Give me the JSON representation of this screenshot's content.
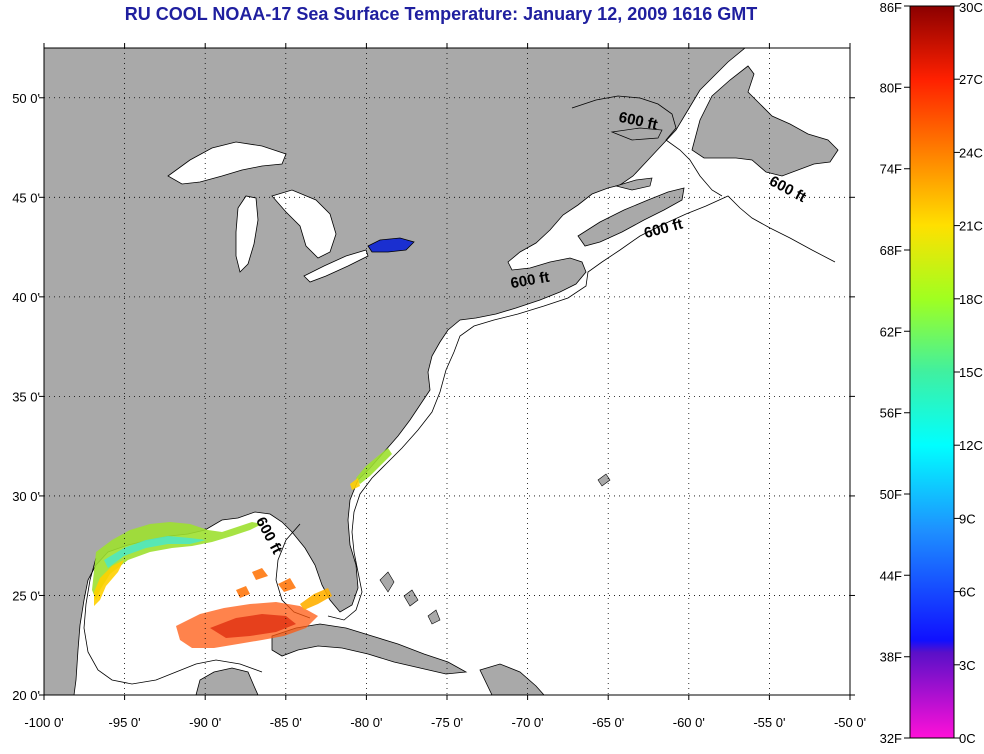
{
  "title": "RU COOL  NOAA-17  Sea Surface Temperature:  January 12, 2009 1616 GMT",
  "colors": {
    "land": "#a9a9a9",
    "ocean": "#ffffff",
    "frame": "#000000",
    "title": "#1f1f9f"
  },
  "axes": {
    "lon_range": [
      -100,
      -50
    ],
    "lat_range": [
      20,
      52.5
    ],
    "lon_ticks": [
      {
        "value": -100,
        "label": "-100 0'"
      },
      {
        "value": -95,
        "label": "-95 0'"
      },
      {
        "value": -90,
        "label": "-90 0'"
      },
      {
        "value": -85,
        "label": "-85 0'"
      },
      {
        "value": -80,
        "label": "-80 0'"
      },
      {
        "value": -75,
        "label": "-75 0'"
      },
      {
        "value": -70,
        "label": "-70 0'"
      },
      {
        "value": -65,
        "label": "-65 0'"
      },
      {
        "value": -60,
        "label": "-60 0'"
      },
      {
        "value": -55,
        "label": "-55 0'"
      },
      {
        "value": -50,
        "label": "-50 0'"
      }
    ],
    "lat_ticks": [
      {
        "value": 50,
        "label": "50 0'"
      },
      {
        "value": 45,
        "label": "45 0'"
      },
      {
        "value": 40,
        "label": "40 0'"
      },
      {
        "value": 35,
        "label": "35 0'"
      },
      {
        "value": 30,
        "label": "30 0'"
      },
      {
        "value": 25,
        "label": "25 0'"
      },
      {
        "value": 20,
        "label": "20 0'"
      }
    ]
  },
  "isobath_labels": [
    {
      "text": "600 ft",
      "lon": -63.2,
      "lat": 48.6,
      "angle": 12
    },
    {
      "text": "600 ft",
      "lon": -54.0,
      "lat": 45.2,
      "angle": 28
    },
    {
      "text": "600 ft",
      "lon": -61.5,
      "lat": 43.2,
      "angle": -15
    },
    {
      "text": "600 ft",
      "lon": -69.8,
      "lat": 40.6,
      "angle": -10
    },
    {
      "text": "600 ft",
      "lon": -86.3,
      "lat": 27.9,
      "angle": 62
    }
  ],
  "colorbar": {
    "fahrenheit_labels": [
      {
        "label": "86F",
        "celsius": 30
      },
      {
        "label": "80F",
        "celsius": 26.67
      },
      {
        "label": "74F",
        "celsius": 23.33
      },
      {
        "label": "68F",
        "celsius": 20
      },
      {
        "label": "62F",
        "celsius": 16.67
      },
      {
        "label": "56F",
        "celsius": 13.33
      },
      {
        "label": "50F",
        "celsius": 10
      },
      {
        "label": "44F",
        "celsius": 6.67
      },
      {
        "label": "38F",
        "celsius": 3.33
      },
      {
        "label": "32F",
        "celsius": 0
      }
    ],
    "celsius_labels": [
      {
        "label": "30C",
        "celsius": 30
      },
      {
        "label": "27C",
        "celsius": 27
      },
      {
        "label": "24C",
        "celsius": 24
      },
      {
        "label": "21C",
        "celsius": 21
      },
      {
        "label": "18C",
        "celsius": 18
      },
      {
        "label": "15C",
        "celsius": 15
      },
      {
        "label": "12C",
        "celsius": 12
      },
      {
        "label": "9C",
        "celsius": 9
      },
      {
        "label": "6C",
        "celsius": 6
      },
      {
        "label": "3C",
        "celsius": 3
      },
      {
        "label": "0C",
        "celsius": 0
      }
    ],
    "range_c": [
      0,
      30
    ],
    "stops": [
      {
        "celsius": 0,
        "color": "#ff10d8"
      },
      {
        "celsius": 3.5,
        "color": "#5a10c8"
      },
      {
        "celsius": 4,
        "color": "#1010ff"
      },
      {
        "celsius": 8.5,
        "color": "#1e90ff"
      },
      {
        "celsius": 12,
        "color": "#00ffff"
      },
      {
        "celsius": 15,
        "color": "#40f0a0"
      },
      {
        "celsius": 18,
        "color": "#a0ff20"
      },
      {
        "celsius": 21,
        "color": "#ffe000"
      },
      {
        "celsius": 24,
        "color": "#ff8000"
      },
      {
        "celsius": 27,
        "color": "#ff2000"
      },
      {
        "celsius": 30,
        "color": "#8b0000"
      }
    ]
  }
}
